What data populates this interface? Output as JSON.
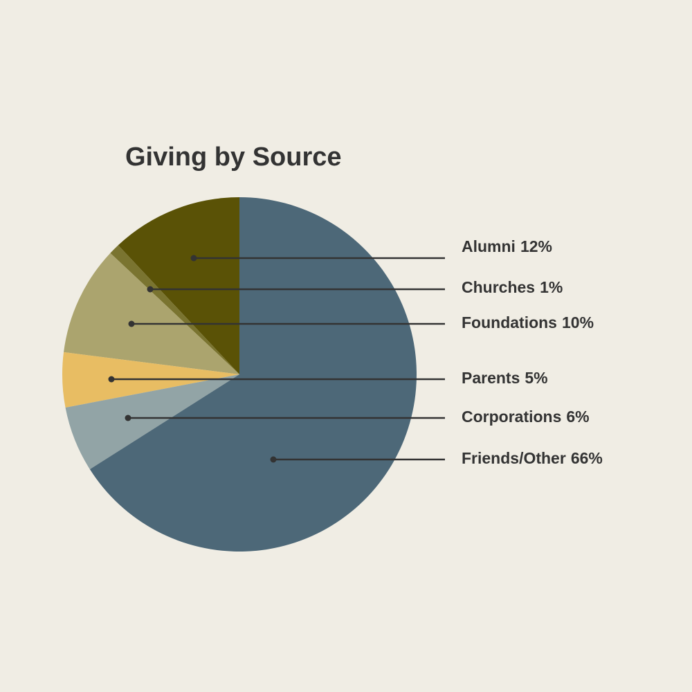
{
  "chart_data": {
    "type": "pie",
    "title": "Giving by Source",
    "categories": [
      "Alumni",
      "Churches",
      "Foundations",
      "Parents",
      "Corporations",
      "Friends/Other"
    ],
    "values": [
      12,
      1,
      10,
      5,
      6,
      66
    ],
    "value_labels": [
      "12%",
      "1%",
      "10%",
      "5%",
      "6%",
      "66%"
    ],
    "colors": [
      "#5a5206",
      "#7a7430",
      "#aba46e",
      "#e8bd63",
      "#92a4a6",
      "#4d6878"
    ]
  }
}
